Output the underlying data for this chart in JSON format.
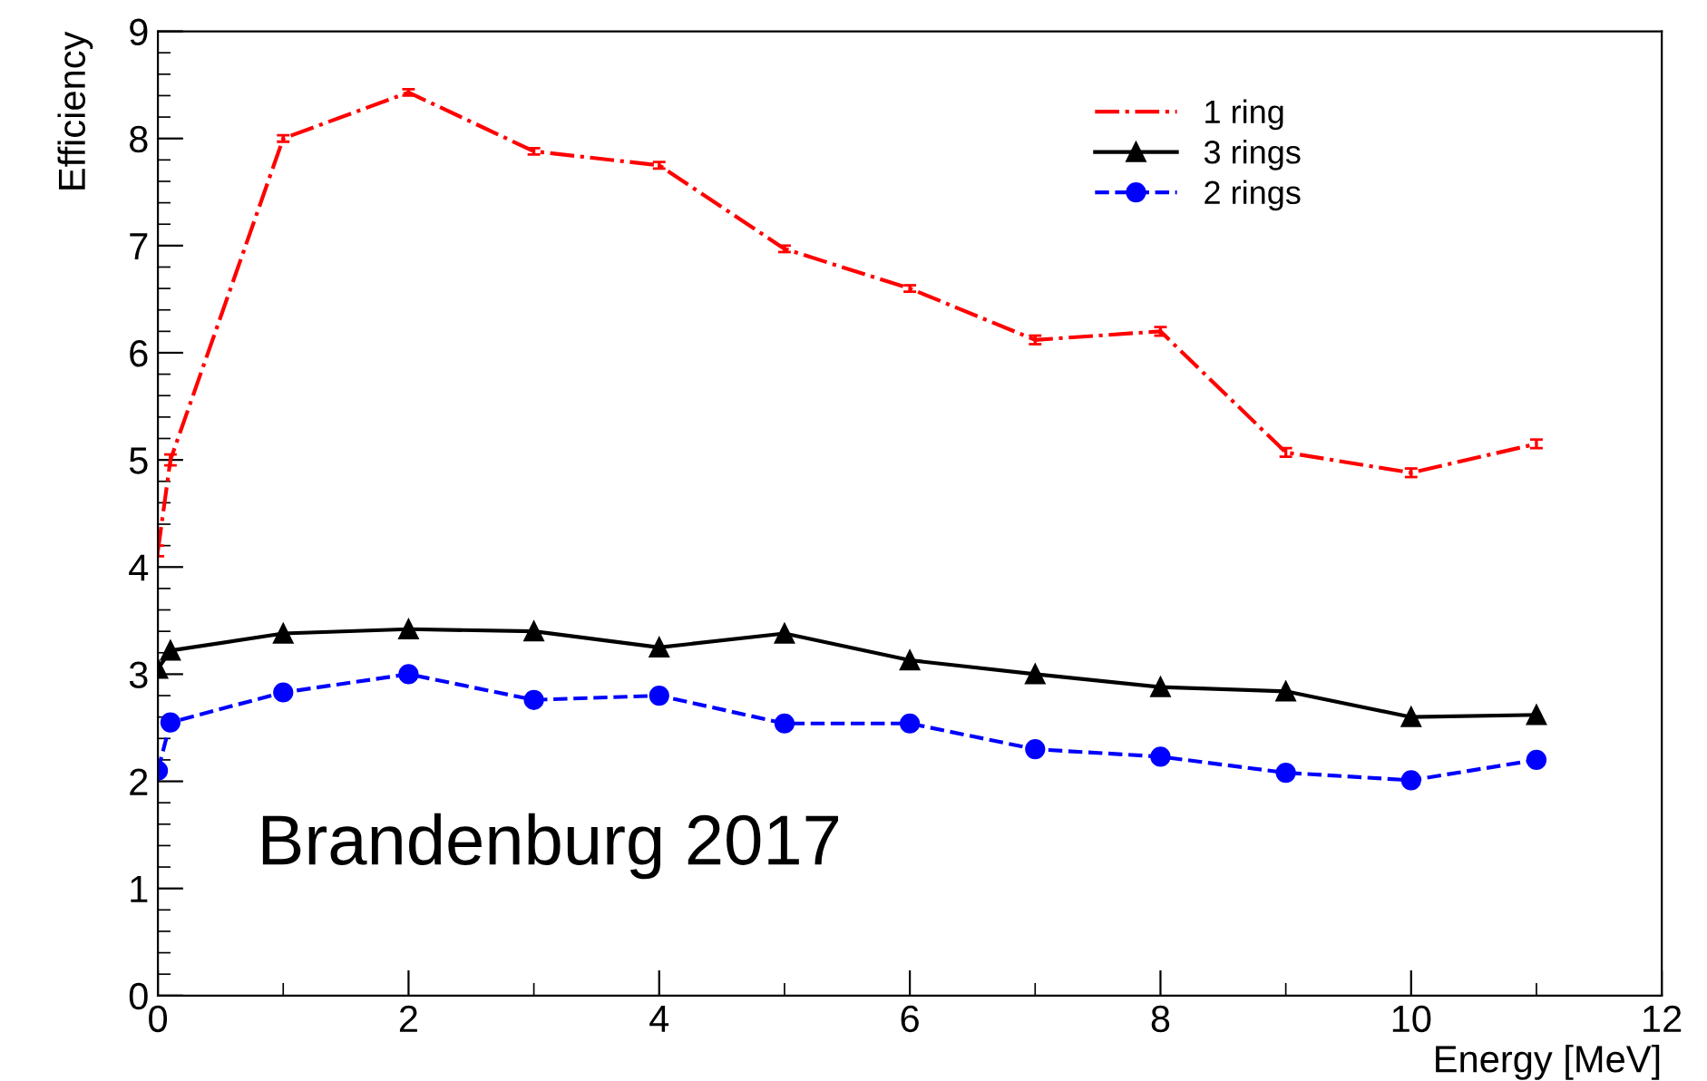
{
  "chart_data": {
    "type": "line",
    "xlabel": "Energy [MeV]",
    "ylabel": "Efficiency",
    "x": [
      0,
      0.1,
      1,
      2,
      3,
      4,
      5,
      6,
      7,
      8,
      9,
      10,
      11
    ],
    "series": [
      {
        "name": "1 ring",
        "color": "#ff0000",
        "marker": "none",
        "line_style": "dashdot",
        "values": [
          4.15,
          5.0,
          8.0,
          8.43,
          7.88,
          7.75,
          6.97,
          6.6,
          6.12,
          6.2,
          5.07,
          4.88,
          5.15
        ],
        "errors": [
          0.05,
          0.05,
          0.03,
          0.03,
          0.03,
          0.03,
          0.03,
          0.03,
          0.04,
          0.04,
          0.04,
          0.04,
          0.04
        ]
      },
      {
        "name": "3 rings",
        "color": "#000000",
        "marker": "triangle",
        "line_style": "solid",
        "values": [
          3.05,
          3.22,
          3.38,
          3.42,
          3.4,
          3.25,
          3.38,
          3.13,
          3.0,
          2.88,
          2.84,
          2.6,
          2.62
        ]
      },
      {
        "name": "2 rings",
        "color": "#0000ff",
        "marker": "circle",
        "line_style": "dashed",
        "values": [
          2.1,
          2.55,
          2.83,
          3.0,
          2.76,
          2.8,
          2.54,
          2.54,
          2.3,
          2.23,
          2.08,
          2.01,
          2.2
        ],
        "errors": [
          0.05,
          0.05,
          0.04,
          0.04,
          0.04,
          0.04,
          0.04,
          0.04,
          0.05,
          0.04,
          0.04,
          0.04,
          0.05
        ]
      }
    ],
    "xlim": [
      0,
      12
    ],
    "xticks": [
      0,
      2,
      4,
      6,
      8,
      10,
      12
    ],
    "ylim": [
      0,
      9
    ],
    "yticks": [
      0,
      1,
      2,
      3,
      4,
      5,
      6,
      7,
      8,
      9
    ],
    "grid": false,
    "legend": "top right",
    "annotations": [
      "Brandenburg 2017"
    ]
  }
}
